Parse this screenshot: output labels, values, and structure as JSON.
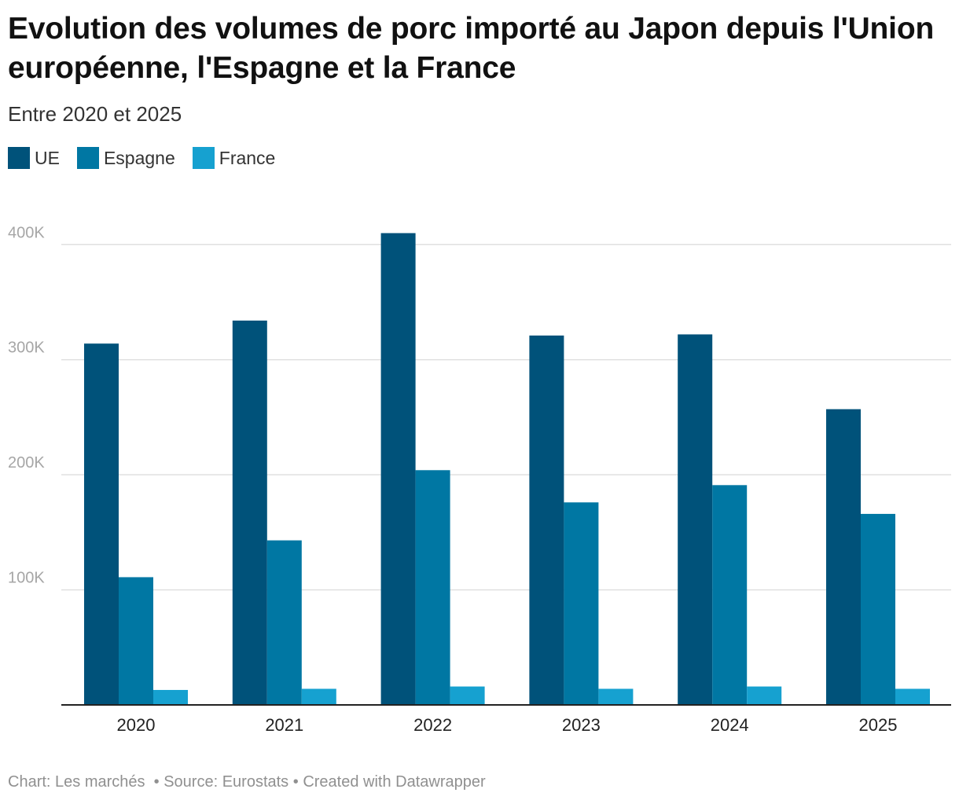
{
  "title": "Evolution des volumes de porc importé au Japon depuis l'Union européenne, l'Espagne et la France",
  "subtitle": "Entre 2020 et 2025",
  "footer": {
    "chart_credit": "Chart: Les marchés",
    "source": "Source: Eurostats",
    "created_with": "Created with Datawrapper",
    "separator": "•"
  },
  "colors": {
    "UE": "#00527a",
    "Espagne": "#0077a3",
    "France": "#16a1d0",
    "grid": "#e0e0e0",
    "axis": "#222222",
    "tick_label": "#a6a6a6"
  },
  "chart_data": {
    "type": "bar",
    "categories": [
      "2020",
      "2021",
      "2022",
      "2023",
      "2024",
      "2025"
    ],
    "series": [
      {
        "name": "UE",
        "values": [
          314000,
          334000,
          410000,
          321000,
          322000,
          257000
        ]
      },
      {
        "name": "Espagne",
        "values": [
          111000,
          143000,
          204000,
          176000,
          191000,
          166000
        ]
      },
      {
        "name": "France",
        "values": [
          13000,
          14000,
          16000,
          14000,
          16000,
          14000
        ]
      }
    ],
    "y_ticks": [
      100000,
      200000,
      300000,
      400000
    ],
    "y_tick_labels": [
      "100K",
      "200K",
      "300K",
      "400K"
    ],
    "ylim": [
      0,
      420000
    ],
    "grid": true,
    "legend": "top-left"
  }
}
